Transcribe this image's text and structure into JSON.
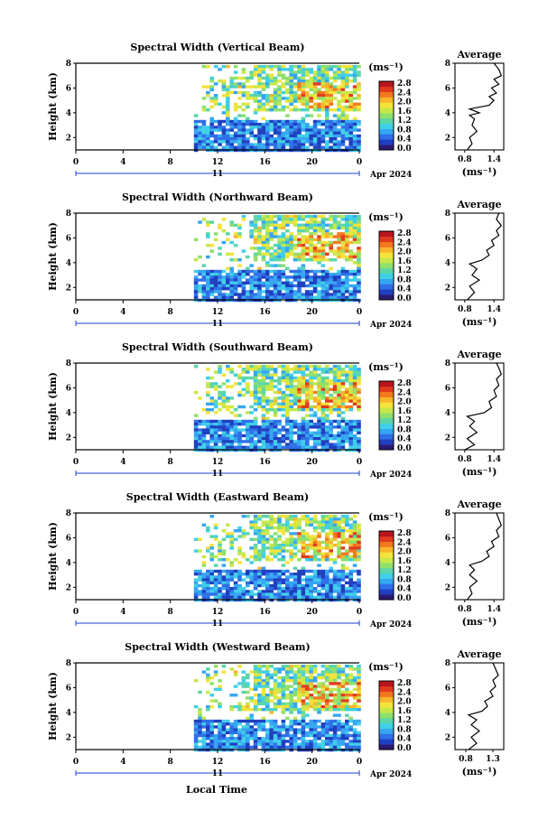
{
  "colors": {
    "colormap": [
      "#2b1a72",
      "#1f3fc0",
      "#2f6fe8",
      "#35a6f2",
      "#3fd0e8",
      "#5ad6a8",
      "#8ee06a",
      "#c8e84a",
      "#f4e33a",
      "#f8b62c",
      "#f2781e",
      "#e23a1e",
      "#b8141e"
    ],
    "axis": "#000000",
    "profile_line": "#000000",
    "time_bar": "#1a3fd6"
  },
  "footer": {
    "xlabel": "Local Time"
  },
  "chart_data": [
    {
      "type": "heatmap",
      "title": "Spectral Width (Vertical Beam)",
      "ylabel": "Height (km)",
      "xlim": [
        0,
        24
      ],
      "ylim": [
        1,
        8
      ],
      "xticks": [
        "0",
        "4",
        "8",
        "12",
        "16",
        "20",
        "0"
      ],
      "yticks": [
        "2",
        "4",
        "6",
        "8"
      ],
      "date_label": "11",
      "date_suffix": "Apr 2024",
      "colorbar": {
        "label": "(ms⁻¹)",
        "ticks": [
          "0.0",
          "0.4",
          "0.8",
          "1.2",
          "1.6",
          "2.0",
          "2.4",
          "2.8"
        ],
        "range": [
          0.0,
          2.8
        ]
      },
      "data_coverage_start_h": 10,
      "average_profile": {
        "title": "Average",
        "xlabel": "(ms⁻¹)",
        "xticks": [
          "0.8",
          "1.4"
        ],
        "xlim": [
          0.6,
          1.6
        ],
        "ylim": [
          1,
          8
        ],
        "points": [
          [
            0.85,
            1.0
          ],
          [
            0.95,
            1.5
          ],
          [
            0.9,
            2.0
          ],
          [
            1.05,
            2.5
          ],
          [
            0.95,
            3.0
          ],
          [
            1.0,
            3.5
          ],
          [
            0.9,
            3.8
          ],
          [
            1.1,
            4.0
          ],
          [
            0.9,
            4.3
          ],
          [
            1.3,
            4.6
          ],
          [
            1.4,
            5.0
          ],
          [
            1.3,
            5.3
          ],
          [
            1.45,
            5.6
          ],
          [
            1.35,
            6.0
          ],
          [
            1.5,
            6.3
          ],
          [
            1.4,
            6.7
          ],
          [
            1.55,
            7.0
          ],
          [
            1.5,
            7.5
          ],
          [
            1.4,
            8.0
          ]
        ]
      }
    },
    {
      "type": "heatmap",
      "title": "Spectral Width (Northward Beam)",
      "ylabel": "Height (km)",
      "xlim": [
        0,
        24
      ],
      "ylim": [
        1,
        8
      ],
      "xticks": [
        "0",
        "4",
        "8",
        "12",
        "16",
        "20",
        "0"
      ],
      "yticks": [
        "2",
        "4",
        "6",
        "8"
      ],
      "date_label": "11",
      "date_suffix": "Apr 2024",
      "colorbar": {
        "label": "(ms⁻¹)",
        "ticks": [
          "0.0",
          "0.4",
          "0.8",
          "1.2",
          "1.6",
          "2.0",
          "2.4",
          "2.8"
        ],
        "range": [
          0.0,
          2.8
        ]
      },
      "data_coverage_start_h": 10,
      "average_profile": {
        "title": "Average",
        "xlabel": "(ms⁻¹)",
        "xticks": [
          "0.8",
          "1.4"
        ],
        "xlim": [
          0.6,
          1.6
        ],
        "ylim": [
          1,
          8
        ],
        "points": [
          [
            0.85,
            1.0
          ],
          [
            1.0,
            1.6
          ],
          [
            0.9,
            2.1
          ],
          [
            1.1,
            2.6
          ],
          [
            0.95,
            3.0
          ],
          [
            1.05,
            3.5
          ],
          [
            0.9,
            3.9
          ],
          [
            1.15,
            4.2
          ],
          [
            1.3,
            4.6
          ],
          [
            1.25,
            5.0
          ],
          [
            1.4,
            5.4
          ],
          [
            1.35,
            5.8
          ],
          [
            1.5,
            6.2
          ],
          [
            1.45,
            6.6
          ],
          [
            1.55,
            7.0
          ],
          [
            1.45,
            7.5
          ],
          [
            1.5,
            8.0
          ]
        ]
      }
    },
    {
      "type": "heatmap",
      "title": "Spectral Width (Southward Beam)",
      "ylabel": "Height (km)",
      "xlim": [
        0,
        24
      ],
      "ylim": [
        1,
        8
      ],
      "xticks": [
        "0",
        "4",
        "8",
        "12",
        "16",
        "20",
        "0"
      ],
      "yticks": [
        "2",
        "4",
        "6",
        "8"
      ],
      "date_label": "11",
      "date_suffix": "Apr 2024",
      "colorbar": {
        "label": "(ms⁻¹)",
        "ticks": [
          "0.0",
          "0.4",
          "0.8",
          "1.2",
          "1.6",
          "2.0",
          "2.4",
          "2.8"
        ],
        "range": [
          0.0,
          2.8
        ]
      },
      "data_coverage_start_h": 10,
      "average_profile": {
        "title": "Average",
        "xlabel": "(ms⁻¹)",
        "xticks": [
          "0.8",
          "1.4"
        ],
        "xlim": [
          0.6,
          1.6
        ],
        "ylim": [
          1,
          8
        ],
        "points": [
          [
            0.8,
            1.0
          ],
          [
            1.0,
            1.4
          ],
          [
            0.85,
            1.9
          ],
          [
            1.05,
            2.4
          ],
          [
            0.9,
            2.9
          ],
          [
            1.0,
            3.3
          ],
          [
            0.85,
            3.7
          ],
          [
            1.2,
            4.0
          ],
          [
            1.35,
            4.4
          ],
          [
            1.3,
            4.9
          ],
          [
            1.45,
            5.3
          ],
          [
            1.4,
            5.8
          ],
          [
            1.5,
            6.2
          ],
          [
            1.45,
            6.7
          ],
          [
            1.55,
            7.1
          ],
          [
            1.5,
            7.6
          ],
          [
            1.45,
            8.0
          ]
        ]
      }
    },
    {
      "type": "heatmap",
      "title": "Spectral Width (Eastward Beam)",
      "ylabel": "Height (km)",
      "xlim": [
        0,
        24
      ],
      "ylim": [
        1,
        8
      ],
      "xticks": [
        "0",
        "4",
        "8",
        "12",
        "16",
        "20",
        "0"
      ],
      "yticks": [
        "2",
        "4",
        "6",
        "8"
      ],
      "date_label": "11",
      "date_suffix": "Apr 2024",
      "colorbar": {
        "label": "(ms⁻¹)",
        "ticks": [
          "0.0",
          "0.4",
          "0.8",
          "1.2",
          "1.6",
          "2.0",
          "2.4",
          "2.8"
        ],
        "range": [
          0.0,
          2.8
        ]
      },
      "data_coverage_start_h": 10,
      "average_profile": {
        "title": "Average",
        "xlabel": "(ms⁻¹)",
        "xticks": [
          "0.8",
          "1.4"
        ],
        "xlim": [
          0.6,
          1.6
        ],
        "ylim": [
          1,
          8
        ],
        "points": [
          [
            0.85,
            1.0
          ],
          [
            0.95,
            1.5
          ],
          [
            0.9,
            2.0
          ],
          [
            1.05,
            2.5
          ],
          [
            0.9,
            3.0
          ],
          [
            1.0,
            3.4
          ],
          [
            0.9,
            3.8
          ],
          [
            1.15,
            4.1
          ],
          [
            1.3,
            4.5
          ],
          [
            1.25,
            4.9
          ],
          [
            1.4,
            5.3
          ],
          [
            1.35,
            5.7
          ],
          [
            1.5,
            6.1
          ],
          [
            1.45,
            6.6
          ],
          [
            1.55,
            7.0
          ],
          [
            1.5,
            7.5
          ],
          [
            1.45,
            8.0
          ]
        ]
      }
    },
    {
      "type": "heatmap",
      "title": "Spectral Width (Westward Beam)",
      "ylabel": "Height (km)",
      "xlim": [
        0,
        24
      ],
      "ylim": [
        1,
        8
      ],
      "xticks": [
        "0",
        "4",
        "8",
        "12",
        "16",
        "20",
        "0"
      ],
      "yticks": [
        "2",
        "4",
        "6",
        "8"
      ],
      "date_label": "11",
      "date_suffix": "Apr 2024",
      "colorbar": {
        "label": "(ms⁻¹)",
        "ticks": [
          "0.0",
          "0.4",
          "0.8",
          "1.2",
          "1.6",
          "2.0",
          "2.4",
          "2.8"
        ],
        "range": [
          0.0,
          2.8
        ]
      },
      "data_coverage_start_h": 10,
      "average_profile": {
        "title": "Average",
        "xlabel": "(ms⁻¹)",
        "xticks": [
          "0.8",
          "1.3"
        ],
        "xlim": [
          0.6,
          1.5
        ],
        "ylim": [
          1,
          8
        ],
        "points": [
          [
            0.85,
            1.0
          ],
          [
            1.0,
            1.5
          ],
          [
            0.9,
            2.0
          ],
          [
            1.05,
            2.5
          ],
          [
            0.9,
            3.0
          ],
          [
            1.0,
            3.4
          ],
          [
            0.85,
            3.8
          ],
          [
            1.1,
            4.1
          ],
          [
            1.2,
            4.5
          ],
          [
            1.15,
            4.9
          ],
          [
            1.3,
            5.3
          ],
          [
            1.25,
            5.7
          ],
          [
            1.35,
            6.1
          ],
          [
            1.3,
            6.6
          ],
          [
            1.4,
            7.0
          ],
          [
            1.35,
            7.5
          ],
          [
            1.3,
            8.0
          ]
        ]
      }
    }
  ]
}
